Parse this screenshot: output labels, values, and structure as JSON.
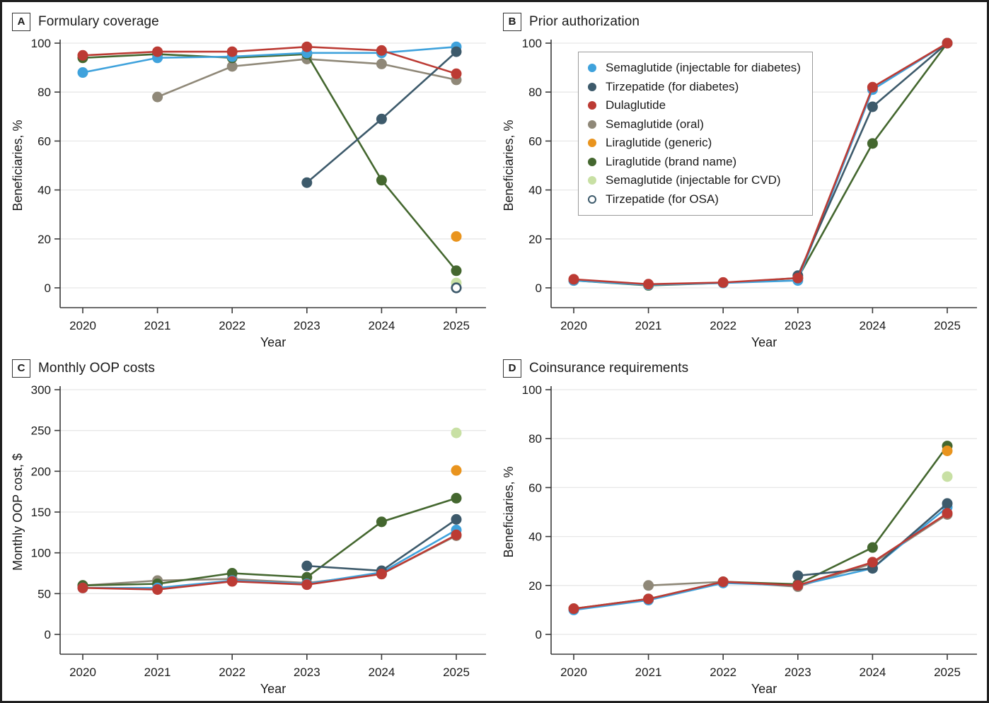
{
  "palette": {
    "blue": "#3FA2DC",
    "navy": "#3D5A6B",
    "red": "#BC3B34",
    "gray": "#8F8878",
    "orange": "#E9941E",
    "green": "#44672F",
    "lightgreen": "#C8E0A4",
    "open_fill": "#FFFFFF",
    "gridline": "#E7E7E7",
    "axis": "#3A3A3A"
  },
  "legend": {
    "items": [
      {
        "label": "Semaglutide (injectable for diabetes)",
        "color": "blue"
      },
      {
        "label": "Tirzepatide (for diabetes)",
        "color": "navy"
      },
      {
        "label": "Dulaglutide",
        "color": "red"
      },
      {
        "label": "Semaglutide (oral)",
        "color": "gray"
      },
      {
        "label": "Liraglutide (generic)",
        "color": "orange"
      },
      {
        "label": "Liraglutide (brand name)",
        "color": "green"
      },
      {
        "label": "Semaglutide (injectable for CVD)",
        "color": "lightgreen"
      },
      {
        "label": "Tirzepatide (for OSA)",
        "color": "open"
      }
    ]
  },
  "chart_data": [
    {
      "letter": "A",
      "title": "Formulary coverage",
      "type": "line",
      "xlabel": "Year",
      "ylabel": "Beneficiaries, %",
      "ylim": [
        0,
        100
      ],
      "yticks": [
        0,
        20,
        40,
        60,
        80,
        100
      ],
      "x": [
        2020,
        2021,
        2022,
        2023,
        2024,
        2025
      ],
      "series": [
        {
          "name": "Semaglutide (oral)",
          "color": "gray",
          "values": [
            null,
            78,
            90.5,
            93.5,
            91.5,
            85
          ]
        },
        {
          "name": "Liraglutide (brand name)",
          "color": "green",
          "values": [
            94,
            95.5,
            94,
            95.5,
            44,
            7
          ]
        },
        {
          "name": "Semaglutide (injectable for diabetes)",
          "color": "blue",
          "values": [
            88,
            94,
            94.5,
            96,
            96,
            98.5
          ]
        },
        {
          "name": "Tirzepatide (for diabetes)",
          "color": "navy",
          "values": [
            null,
            null,
            null,
            43,
            69,
            96.5
          ]
        },
        {
          "name": "Dulaglutide",
          "color": "red",
          "values": [
            95,
            96.5,
            96.5,
            98.5,
            97,
            87.5
          ]
        },
        {
          "name": "Liraglutide (generic)",
          "color": "orange",
          "values": [
            null,
            null,
            null,
            null,
            null,
            21
          ]
        },
        {
          "name": "Semaglutide (injectable for CVD)",
          "color": "lightgreen",
          "values": [
            null,
            null,
            null,
            null,
            null,
            2
          ]
        },
        {
          "name": "Tirzepatide (for OSA)",
          "color": "open",
          "values": [
            null,
            null,
            null,
            null,
            null,
            0
          ]
        }
      ]
    },
    {
      "letter": "B",
      "title": "Prior authorization",
      "type": "line",
      "xlabel": "Year",
      "ylabel": "Beneficiaries, %",
      "ylim": [
        0,
        100
      ],
      "yticks": [
        0,
        20,
        40,
        60,
        80,
        100
      ],
      "x": [
        2020,
        2021,
        2022,
        2023,
        2024,
        2025
      ],
      "series": [
        {
          "name": "Liraglutide (brand name)",
          "color": "green",
          "values": [
            3,
            1,
            2,
            4,
            59,
            100
          ]
        },
        {
          "name": "Semaglutide (injectable for diabetes)",
          "color": "blue",
          "values": [
            3,
            1.2,
            2,
            3,
            81,
            100
          ]
        },
        {
          "name": "Tirzepatide (for diabetes)",
          "color": "navy",
          "values": [
            null,
            null,
            null,
            5,
            74,
            100
          ]
        },
        {
          "name": "Dulaglutide",
          "color": "red",
          "values": [
            3.5,
            1.5,
            2.2,
            4,
            82,
            100
          ]
        }
      ]
    },
    {
      "letter": "C",
      "title": "Monthly OOP costs",
      "type": "line",
      "xlabel": "Year",
      "ylabel": "Monthly OOP cost, $",
      "ylim": [
        0,
        300
      ],
      "yticks": [
        0,
        50,
        100,
        150,
        200,
        250,
        300
      ],
      "x": [
        2020,
        2021,
        2022,
        2023,
        2024,
        2025
      ],
      "series": [
        {
          "name": "Semaglutide (oral)",
          "color": "gray",
          "values": [
            60,
            66,
            68,
            63,
            74,
            121
          ]
        },
        {
          "name": "Liraglutide (brand name)",
          "color": "green",
          "values": [
            60,
            62,
            75,
            70,
            138,
            167
          ]
        },
        {
          "name": "Semaglutide (injectable for diabetes)",
          "color": "blue",
          "values": [
            57,
            57,
            66,
            62,
            76,
            128
          ]
        },
        {
          "name": "Tirzepatide (for diabetes)",
          "color": "navy",
          "values": [
            null,
            null,
            null,
            84,
            78,
            141
          ]
        },
        {
          "name": "Dulaglutide",
          "color": "red",
          "values": [
            57,
            55,
            65,
            61,
            74,
            122
          ]
        },
        {
          "name": "Liraglutide (generic)",
          "color": "orange",
          "values": [
            null,
            null,
            null,
            null,
            null,
            201
          ]
        },
        {
          "name": "Semaglutide (injectable for CVD)",
          "color": "lightgreen",
          "values": [
            null,
            null,
            null,
            null,
            null,
            247
          ]
        }
      ]
    },
    {
      "letter": "D",
      "title": "Coinsurance requirements",
      "type": "line",
      "xlabel": "Year",
      "ylabel": "Beneficiaries, %",
      "ylim": [
        0,
        100
      ],
      "yticks": [
        0,
        20,
        40,
        60,
        80,
        100
      ],
      "x": [
        2020,
        2021,
        2022,
        2023,
        2024,
        2025
      ],
      "series": [
        {
          "name": "Semaglutide (oral)",
          "color": "gray",
          "values": [
            null,
            20,
            21.5,
            19.5,
            29,
            49
          ]
        },
        {
          "name": "Liraglutide (brand name)",
          "color": "green",
          "values": [
            10.5,
            14.5,
            21.5,
            20.5,
            35.5,
            77
          ]
        },
        {
          "name": "Semaglutide (injectable for diabetes)",
          "color": "blue",
          "values": [
            10,
            14,
            21,
            20,
            27,
            52
          ]
        },
        {
          "name": "Tirzepatide (for diabetes)",
          "color": "navy",
          "values": [
            null,
            null,
            null,
            24,
            27,
            53.5
          ]
        },
        {
          "name": "Dulaglutide",
          "color": "red",
          "values": [
            10.5,
            14.5,
            21.5,
            20,
            29.5,
            49.5
          ]
        },
        {
          "name": "Liraglutide (generic)",
          "color": "orange",
          "values": [
            null,
            null,
            null,
            null,
            null,
            75
          ]
        },
        {
          "name": "Semaglutide (injectable for CVD)",
          "color": "lightgreen",
          "values": [
            null,
            null,
            null,
            null,
            null,
            64.5
          ]
        }
      ]
    }
  ]
}
